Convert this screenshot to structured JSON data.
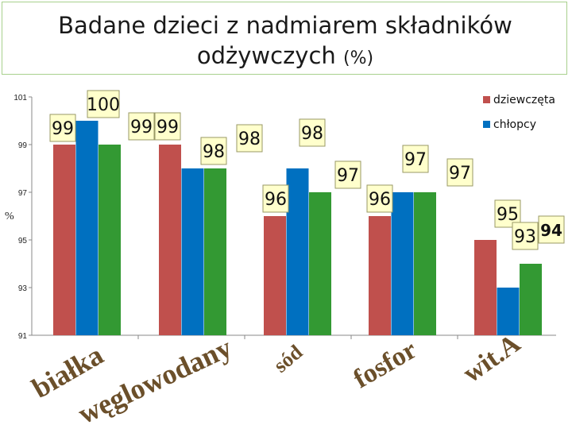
{
  "chart_data": {
    "type": "bar",
    "title_line1": "Badane dzieci z nadmiarem składników",
    "title_line2": "odżywczych",
    "title_unit": "(%)",
    "ylabel": "%",
    "ylim": [
      91,
      101
    ],
    "yticks": [
      "91",
      "93",
      "95",
      "97",
      "99",
      "101"
    ],
    "categories": [
      "białka",
      "węglowodany",
      "sód",
      "fosfor",
      "wit.A"
    ],
    "series": [
      {
        "name": "dziewczęta",
        "color": "#c0504d",
        "values": [
          99,
          99,
          96,
          96,
          95
        ]
      },
      {
        "name": "chłopcy",
        "color": "#0070c0",
        "values": [
          100,
          98,
          98,
          97,
          93
        ]
      },
      {
        "name": "",
        "color": "#339933",
        "values": [
          99,
          98,
          97,
          97,
          94
        ]
      }
    ],
    "callouts": [
      [
        "99",
        "100",
        ""
      ],
      [
        "99",
        "99",
        "98"
      ],
      [
        "98",
        "96",
        "98"
      ],
      [
        "97",
        "96",
        "97"
      ],
      [
        "97",
        "95",
        "93"
      ]
    ],
    "extra_callout": "94",
    "legend": [
      "dziewczęta",
      "chłopcy"
    ],
    "legend_position": "top-right"
  }
}
